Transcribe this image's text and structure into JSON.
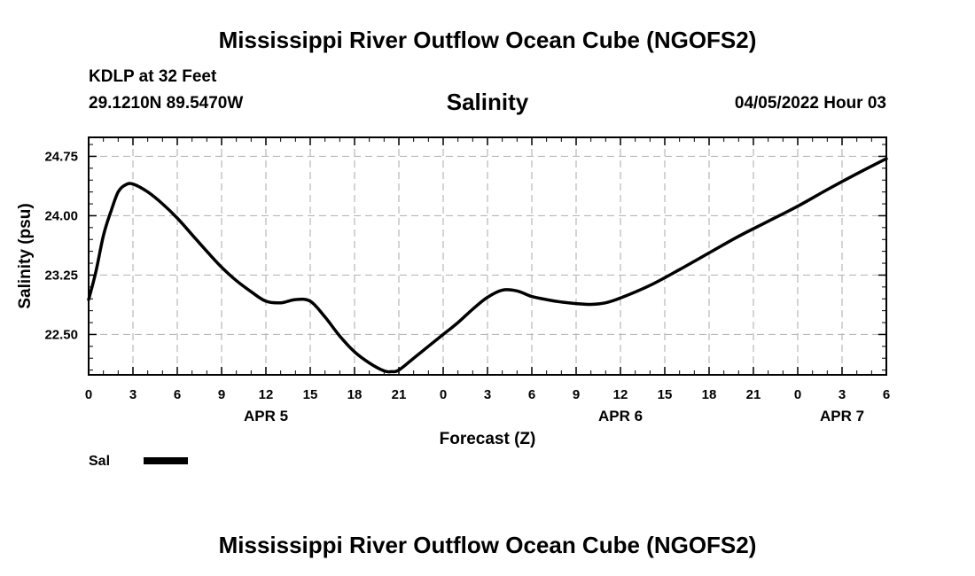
{
  "header": {
    "title_top": "Mississippi River Outflow Ocean Cube (NGOFS2)",
    "station_line": "KDLP at 32 Feet",
    "coords_line": "29.1210N  89.5470W",
    "variable_title": "Salinity",
    "valid_time": "04/05/2022 Hour 03"
  },
  "footer": {
    "title_bottom": "Mississippi River Outflow Ocean Cube (NGOFS2)"
  },
  "legend": {
    "series_label": "Sal"
  },
  "chart_data": {
    "type": "line",
    "title": "Salinity",
    "xlabel": "Forecast (Z)",
    "ylabel": "Salinity (psu)",
    "xlim": [
      0,
      54
    ],
    "ylim": [
      21.99,
      24.99
    ],
    "grid": true,
    "legend_position": "bottom-left",
    "x_ticks": [
      0,
      3,
      6,
      9,
      12,
      15,
      18,
      21,
      24,
      27,
      30,
      33,
      36,
      39,
      42,
      45,
      48,
      51,
      54
    ],
    "x_tick_labels": [
      "0",
      "3",
      "6",
      "9",
      "12",
      "15",
      "18",
      "21",
      "0",
      "3",
      "6",
      "9",
      "12",
      "15",
      "18",
      "21",
      "0",
      "3",
      "6"
    ],
    "date_labels": [
      {
        "x": 12,
        "label": "APR 5"
      },
      {
        "x": 36,
        "label": "APR 6"
      },
      {
        "x": 51,
        "label": "APR 7"
      }
    ],
    "y_ticks": [
      22.5,
      23.25,
      24.0,
      24.75
    ],
    "y_tick_labels": [
      "22.50",
      "23.25",
      "24.00",
      "24.75"
    ],
    "series": [
      {
        "name": "Sal",
        "color": "#000000",
        "x": [
          0,
          0.5,
          1,
          1.5,
          2,
          2.5,
          3,
          4,
          5,
          6,
          7,
          8,
          9,
          10,
          11,
          12,
          13,
          14,
          15,
          16,
          17,
          18,
          19,
          20,
          20.5,
          21,
          22,
          23,
          24,
          25,
          26,
          27,
          28,
          29,
          30,
          31,
          32,
          33,
          34,
          35,
          36,
          38,
          40,
          42,
          44,
          46,
          48,
          50,
          52,
          54
        ],
        "values": [
          22.94,
          23.3,
          23.75,
          24.05,
          24.3,
          24.39,
          24.4,
          24.3,
          24.15,
          23.97,
          23.76,
          23.55,
          23.35,
          23.18,
          23.04,
          22.92,
          22.9,
          22.94,
          22.92,
          22.72,
          22.48,
          22.28,
          22.14,
          22.04,
          22.03,
          22.05,
          22.2,
          22.35,
          22.5,
          22.65,
          22.82,
          22.97,
          23.06,
          23.05,
          22.98,
          22.94,
          22.91,
          22.89,
          22.88,
          22.9,
          22.96,
          23.12,
          23.32,
          23.53,
          23.74,
          23.93,
          24.12,
          24.33,
          24.53,
          24.72
        ]
      }
    ]
  }
}
